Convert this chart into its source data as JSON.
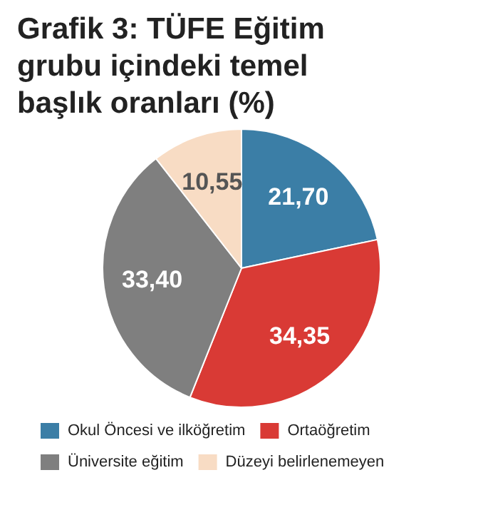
{
  "chart_data": {
    "type": "pie",
    "title": "Grafik 3: TÜFE Eğitim grubu içindeki temel başlık oranları (%)",
    "categories": [
      "Okul Öncesi ve ilköğretim",
      "Ortaöğretim",
      "Üniversite eğitim",
      "Düzeyi belirlenemeyen"
    ],
    "values": [
      21.7,
      34.35,
      33.4,
      10.55
    ],
    "colors": [
      "#3b7ea6",
      "#d93a35",
      "#7f7f7f",
      "#f8dcc4"
    ],
    "value_labels": [
      "21,70",
      "34,35",
      "33,40",
      "10,55"
    ],
    "legend": "bottom"
  }
}
